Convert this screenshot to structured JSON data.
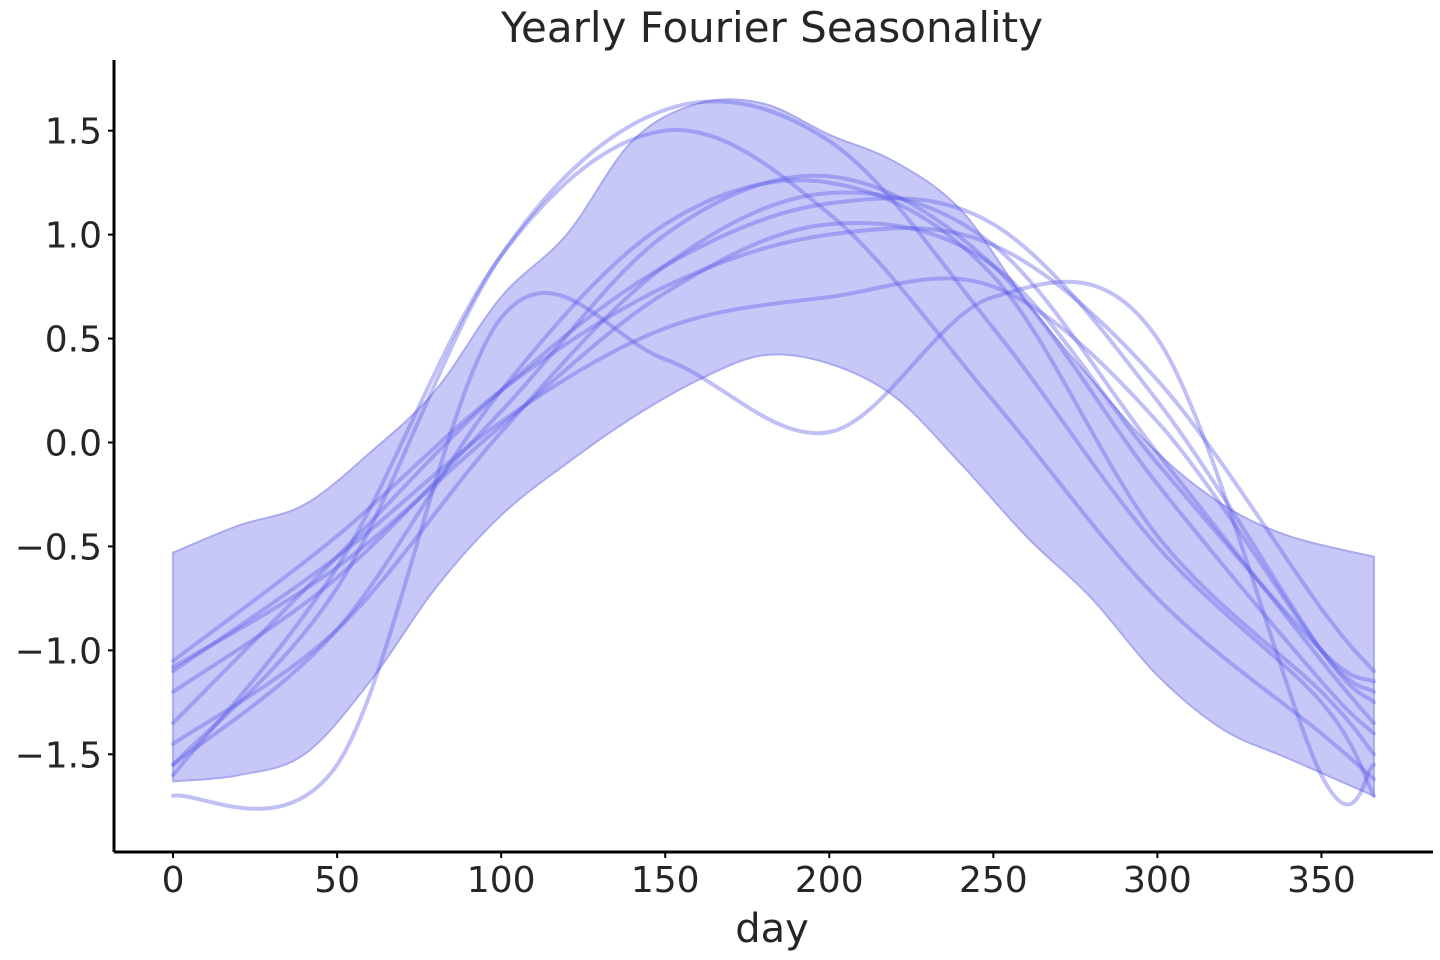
{
  "chart_data": {
    "type": "line",
    "title": "Yearly Fourier Seasonality",
    "xlabel": "day",
    "ylabel": "",
    "xlim": [
      -18,
      384
    ],
    "ylim": [
      -1.97,
      1.84
    ],
    "xticks": [
      0,
      50,
      100,
      150,
      200,
      250,
      300,
      350
    ],
    "xtick_labels": [
      "0",
      "50",
      "100",
      "150",
      "200",
      "250",
      "300",
      "350"
    ],
    "yticks": [
      -1.5,
      -1.0,
      -0.5,
      0.0,
      0.5,
      1.0,
      1.5
    ],
    "ytick_labels": [
      "−1.5",
      "−1.0",
      "−0.5",
      "0.0",
      "0.5",
      "1.0",
      "1.5"
    ],
    "grid": false,
    "colors": {
      "band_fill": "#c8c8f8",
      "band_edge": "#a9a9f0",
      "line": "#5a5ae8"
    },
    "band": {
      "x": [
        0,
        20,
        40,
        60,
        80,
        100,
        120,
        140,
        160,
        180,
        200,
        220,
        240,
        260,
        280,
        300,
        320,
        340,
        366
      ],
      "lower": [
        -1.63,
        -1.6,
        -1.5,
        -1.15,
        -0.7,
        -0.35,
        -0.1,
        0.12,
        0.3,
        0.42,
        0.38,
        0.22,
        -0.1,
        -0.45,
        -0.75,
        -1.12,
        -1.38,
        -1.52,
        -1.7
      ],
      "upper": [
        -0.53,
        -0.4,
        -0.3,
        -0.05,
        0.25,
        0.7,
        1.0,
        1.45,
        1.63,
        1.63,
        1.48,
        1.35,
        1.12,
        0.68,
        0.3,
        -0.05,
        -0.3,
        -0.45,
        -0.55
      ]
    },
    "series": [
      {
        "x": [
          0,
          50,
          100,
          150,
          200,
          250,
          300,
          350,
          366
        ],
        "values": [
          -1.08,
          -0.6,
          0.08,
          0.72,
          1.05,
          0.85,
          -0.1,
          -1.0,
          -1.15
        ]
      },
      {
        "x": [
          0,
          50,
          100,
          150,
          200,
          250,
          300,
          350,
          366
        ],
        "values": [
          -1.55,
          -0.9,
          0.25,
          1.05,
          1.25,
          0.8,
          -0.45,
          -1.2,
          -1.5
        ]
      },
      {
        "x": [
          0,
          50,
          100,
          150,
          200,
          250,
          300,
          350,
          366
        ],
        "values": [
          -1.45,
          -0.9,
          0.05,
          0.85,
          1.2,
          0.95,
          -0.05,
          -1.05,
          -1.35
        ]
      },
      {
        "x": [
          0,
          50,
          100,
          150,
          200,
          250,
          300,
          350,
          366
        ],
        "values": [
          -1.6,
          -0.6,
          0.9,
          1.5,
          1.1,
          0.2,
          -0.75,
          -1.4,
          -1.62
        ]
      },
      {
        "x": [
          0,
          50,
          100,
          150,
          200,
          250,
          300,
          350,
          366
        ],
        "values": [
          -1.35,
          -0.55,
          0.25,
          0.85,
          1.15,
          1.05,
          0.2,
          -1.0,
          -1.25
        ]
      },
      {
        "x": [
          0,
          50,
          100,
          150,
          200,
          250,
          300,
          350,
          366
        ],
        "values": [
          -1.1,
          -0.55,
          0.1,
          0.55,
          0.7,
          0.75,
          0.1,
          -1.0,
          -1.2
        ]
      },
      {
        "x": [
          0,
          50,
          100,
          150,
          200,
          250,
          300,
          350,
          366
        ],
        "values": [
          -1.7,
          -1.55,
          0.6,
          0.4,
          0.05,
          0.7,
          0.5,
          -1.6,
          -1.55
        ]
      },
      {
        "x": [
          0,
          50,
          100,
          150,
          200,
          250,
          300,
          350,
          366
        ],
        "values": [
          -1.55,
          -0.7,
          0.9,
          1.6,
          1.45,
          0.55,
          -0.5,
          -1.25,
          -1.7
        ]
      },
      {
        "x": [
          0,
          50,
          100,
          150,
          200,
          250,
          300,
          350,
          366
        ],
        "values": [
          -1.05,
          -0.45,
          0.25,
          0.75,
          1.0,
          0.95,
          0.3,
          -0.8,
          -1.1
        ]
      },
      {
        "x": [
          0,
          50,
          100,
          150,
          200,
          250,
          300,
          350,
          366
        ],
        "values": [
          -1.2,
          -0.65,
          0.15,
          1.0,
          1.28,
          0.85,
          -0.2,
          -1.15,
          -1.4
        ]
      }
    ]
  }
}
